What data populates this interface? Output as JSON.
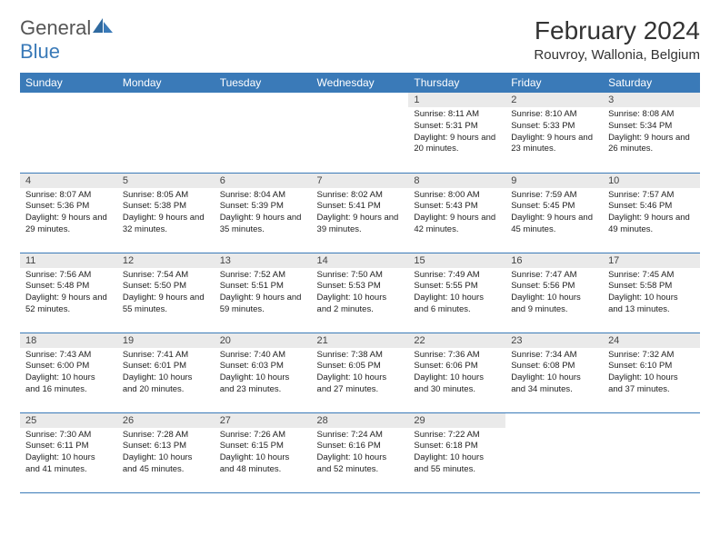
{
  "brand": {
    "part1": "General",
    "part2": "Blue"
  },
  "title": "February 2024",
  "location": "Rouvroy, Wallonia, Belgium",
  "colors": {
    "accent": "#3a7ab8",
    "daynum_bg": "#eaeaea",
    "text": "#222"
  },
  "dayHeaders": [
    "Sunday",
    "Monday",
    "Tuesday",
    "Wednesday",
    "Thursday",
    "Friday",
    "Saturday"
  ],
  "weeks": [
    [
      {
        "n": "",
        "sr": "",
        "ss": "",
        "dl": ""
      },
      {
        "n": "",
        "sr": "",
        "ss": "",
        "dl": ""
      },
      {
        "n": "",
        "sr": "",
        "ss": "",
        "dl": ""
      },
      {
        "n": "",
        "sr": "",
        "ss": "",
        "dl": ""
      },
      {
        "n": "1",
        "sr": "Sunrise: 8:11 AM",
        "ss": "Sunset: 5:31 PM",
        "dl": "Daylight: 9 hours and 20 minutes."
      },
      {
        "n": "2",
        "sr": "Sunrise: 8:10 AM",
        "ss": "Sunset: 5:33 PM",
        "dl": "Daylight: 9 hours and 23 minutes."
      },
      {
        "n": "3",
        "sr": "Sunrise: 8:08 AM",
        "ss": "Sunset: 5:34 PM",
        "dl": "Daylight: 9 hours and 26 minutes."
      }
    ],
    [
      {
        "n": "4",
        "sr": "Sunrise: 8:07 AM",
        "ss": "Sunset: 5:36 PM",
        "dl": "Daylight: 9 hours and 29 minutes."
      },
      {
        "n": "5",
        "sr": "Sunrise: 8:05 AM",
        "ss": "Sunset: 5:38 PM",
        "dl": "Daylight: 9 hours and 32 minutes."
      },
      {
        "n": "6",
        "sr": "Sunrise: 8:04 AM",
        "ss": "Sunset: 5:39 PM",
        "dl": "Daylight: 9 hours and 35 minutes."
      },
      {
        "n": "7",
        "sr": "Sunrise: 8:02 AM",
        "ss": "Sunset: 5:41 PM",
        "dl": "Daylight: 9 hours and 39 minutes."
      },
      {
        "n": "8",
        "sr": "Sunrise: 8:00 AM",
        "ss": "Sunset: 5:43 PM",
        "dl": "Daylight: 9 hours and 42 minutes."
      },
      {
        "n": "9",
        "sr": "Sunrise: 7:59 AM",
        "ss": "Sunset: 5:45 PM",
        "dl": "Daylight: 9 hours and 45 minutes."
      },
      {
        "n": "10",
        "sr": "Sunrise: 7:57 AM",
        "ss": "Sunset: 5:46 PM",
        "dl": "Daylight: 9 hours and 49 minutes."
      }
    ],
    [
      {
        "n": "11",
        "sr": "Sunrise: 7:56 AM",
        "ss": "Sunset: 5:48 PM",
        "dl": "Daylight: 9 hours and 52 minutes."
      },
      {
        "n": "12",
        "sr": "Sunrise: 7:54 AM",
        "ss": "Sunset: 5:50 PM",
        "dl": "Daylight: 9 hours and 55 minutes."
      },
      {
        "n": "13",
        "sr": "Sunrise: 7:52 AM",
        "ss": "Sunset: 5:51 PM",
        "dl": "Daylight: 9 hours and 59 minutes."
      },
      {
        "n": "14",
        "sr": "Sunrise: 7:50 AM",
        "ss": "Sunset: 5:53 PM",
        "dl": "Daylight: 10 hours and 2 minutes."
      },
      {
        "n": "15",
        "sr": "Sunrise: 7:49 AM",
        "ss": "Sunset: 5:55 PM",
        "dl": "Daylight: 10 hours and 6 minutes."
      },
      {
        "n": "16",
        "sr": "Sunrise: 7:47 AM",
        "ss": "Sunset: 5:56 PM",
        "dl": "Daylight: 10 hours and 9 minutes."
      },
      {
        "n": "17",
        "sr": "Sunrise: 7:45 AM",
        "ss": "Sunset: 5:58 PM",
        "dl": "Daylight: 10 hours and 13 minutes."
      }
    ],
    [
      {
        "n": "18",
        "sr": "Sunrise: 7:43 AM",
        "ss": "Sunset: 6:00 PM",
        "dl": "Daylight: 10 hours and 16 minutes."
      },
      {
        "n": "19",
        "sr": "Sunrise: 7:41 AM",
        "ss": "Sunset: 6:01 PM",
        "dl": "Daylight: 10 hours and 20 minutes."
      },
      {
        "n": "20",
        "sr": "Sunrise: 7:40 AM",
        "ss": "Sunset: 6:03 PM",
        "dl": "Daylight: 10 hours and 23 minutes."
      },
      {
        "n": "21",
        "sr": "Sunrise: 7:38 AM",
        "ss": "Sunset: 6:05 PM",
        "dl": "Daylight: 10 hours and 27 minutes."
      },
      {
        "n": "22",
        "sr": "Sunrise: 7:36 AM",
        "ss": "Sunset: 6:06 PM",
        "dl": "Daylight: 10 hours and 30 minutes."
      },
      {
        "n": "23",
        "sr": "Sunrise: 7:34 AM",
        "ss": "Sunset: 6:08 PM",
        "dl": "Daylight: 10 hours and 34 minutes."
      },
      {
        "n": "24",
        "sr": "Sunrise: 7:32 AM",
        "ss": "Sunset: 6:10 PM",
        "dl": "Daylight: 10 hours and 37 minutes."
      }
    ],
    [
      {
        "n": "25",
        "sr": "Sunrise: 7:30 AM",
        "ss": "Sunset: 6:11 PM",
        "dl": "Daylight: 10 hours and 41 minutes."
      },
      {
        "n": "26",
        "sr": "Sunrise: 7:28 AM",
        "ss": "Sunset: 6:13 PM",
        "dl": "Daylight: 10 hours and 45 minutes."
      },
      {
        "n": "27",
        "sr": "Sunrise: 7:26 AM",
        "ss": "Sunset: 6:15 PM",
        "dl": "Daylight: 10 hours and 48 minutes."
      },
      {
        "n": "28",
        "sr": "Sunrise: 7:24 AM",
        "ss": "Sunset: 6:16 PM",
        "dl": "Daylight: 10 hours and 52 minutes."
      },
      {
        "n": "29",
        "sr": "Sunrise: 7:22 AM",
        "ss": "Sunset: 6:18 PM",
        "dl": "Daylight: 10 hours and 55 minutes."
      },
      {
        "n": "",
        "sr": "",
        "ss": "",
        "dl": ""
      },
      {
        "n": "",
        "sr": "",
        "ss": "",
        "dl": ""
      }
    ]
  ]
}
